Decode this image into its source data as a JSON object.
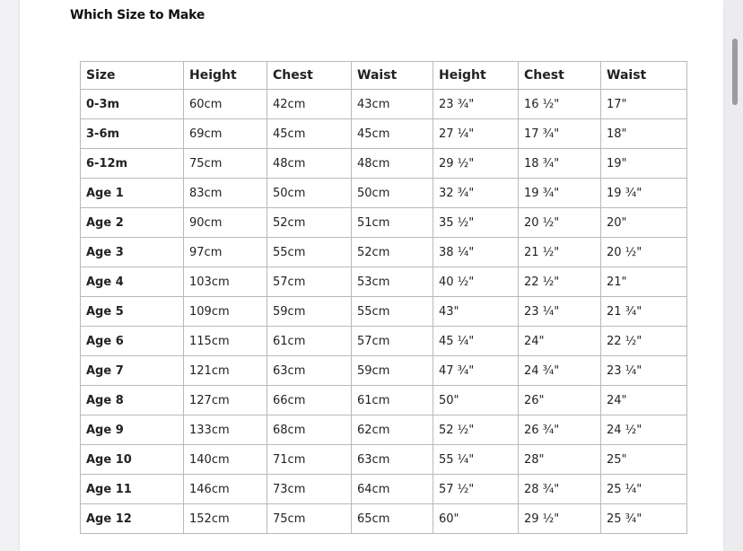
{
  "title": "Which Size to Make",
  "headers": [
    "Size",
    "Height",
    "Chest",
    "Waist",
    "Height",
    "Chest",
    "Waist"
  ],
  "rows": [
    [
      "0-3m",
      "60cm",
      "42cm",
      "43cm",
      "23 ¾\"",
      "16 ½\"",
      "17\""
    ],
    [
      "3-6m",
      "69cm",
      "45cm",
      "45cm",
      "27 ¼\"",
      "17 ¾\"",
      "18\""
    ],
    [
      "6-12m",
      "75cm",
      "48cm",
      "48cm",
      "29 ½\"",
      "18 ¾\"",
      "19\""
    ],
    [
      "Age 1",
      "83cm",
      "50cm",
      "50cm",
      "32 ¾\"",
      "19 ¾\"",
      "19 ¾\""
    ],
    [
      "Age 2",
      "90cm",
      "52cm",
      "51cm",
      "35 ½\"",
      "20 ½\"",
      "20\""
    ],
    [
      "Age 3",
      "97cm",
      "55cm",
      "52cm",
      "38 ¼\"",
      "21 ½\"",
      "20 ½\""
    ],
    [
      "Age 4",
      "103cm",
      "57cm",
      "53cm",
      "40 ½\"",
      "22 ½\"",
      "21\""
    ],
    [
      "Age 5",
      "109cm",
      "59cm",
      "55cm",
      "43\"",
      "23 ¼\"",
      "21 ¾\""
    ],
    [
      "Age 6",
      "115cm",
      "61cm",
      "57cm",
      "45 ¼\"",
      "24\"",
      "22 ½\""
    ],
    [
      "Age 7",
      "121cm",
      "63cm",
      "59cm",
      "47 ¾\"",
      "24 ¾\"",
      "23 ¼\""
    ],
    [
      "Age 8",
      "127cm",
      "66cm",
      "61cm",
      "50\"",
      "26\"",
      "24\""
    ],
    [
      "Age 9",
      "133cm",
      "68cm",
      "62cm",
      "52 ½\"",
      "26 ¾\"",
      "24 ½\""
    ],
    [
      "Age 10",
      "140cm",
      "71cm",
      "63cm",
      "55 ¼\"",
      "28\"",
      "25\""
    ],
    [
      "Age 11",
      "146cm",
      "73cm",
      "64cm",
      "57 ½\"",
      "28 ¾\"",
      "25 ¼\""
    ],
    [
      "Age 12",
      "152cm",
      "75cm",
      "65cm",
      "60\"",
      "29 ½\"",
      "25 ¾\""
    ]
  ]
}
